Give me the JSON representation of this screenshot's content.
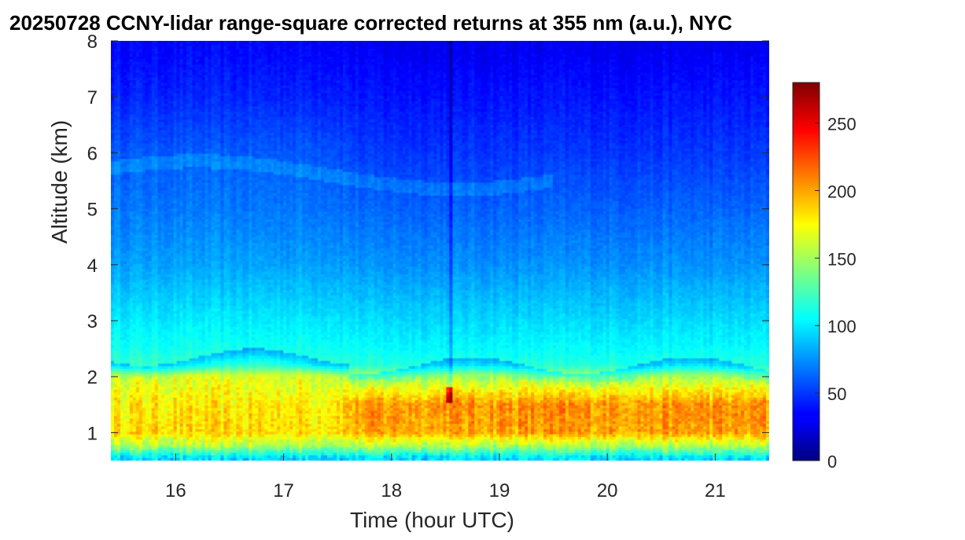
{
  "chart_data": {
    "type": "heatmap",
    "title": "20250728 CCNY-lidar range-square corrected returns at 355 nm (a.u.), NYC",
    "xlabel": "Time (hour UTC)",
    "ylabel": "Altitude (km)",
    "xlim": [
      15.4,
      21.5
    ],
    "ylim": [
      0.5,
      8.0
    ],
    "xticks": [
      16,
      17,
      18,
      19,
      20,
      21
    ],
    "yticks": [
      1,
      2,
      3,
      4,
      5,
      6,
      7,
      8
    ],
    "colorbar": {
      "colormap": "jet",
      "clim": [
        0,
        280
      ],
      "ticks": [
        0,
        50,
        100,
        150,
        200,
        250
      ]
    },
    "profile_description": {
      "altitude_km": [
        0.55,
        0.75,
        1.0,
        1.5,
        2.0,
        2.2,
        2.5,
        3.0,
        4.0,
        5.0,
        6.0,
        7.0,
        8.0
      ],
      "value_before_17_6h": [
        95,
        150,
        185,
        180,
        165,
        120,
        110,
        100,
        80,
        68,
        60,
        45,
        35
      ],
      "value_after_17_6h": [
        95,
        150,
        200,
        205,
        150,
        115,
        105,
        95,
        75,
        62,
        50,
        40,
        30
      ]
    },
    "features": {
      "aerosol_layer_top_km": 1.9,
      "thin_layer_km": 5.6,
      "vertical_streak_hour": 18.55
    }
  }
}
